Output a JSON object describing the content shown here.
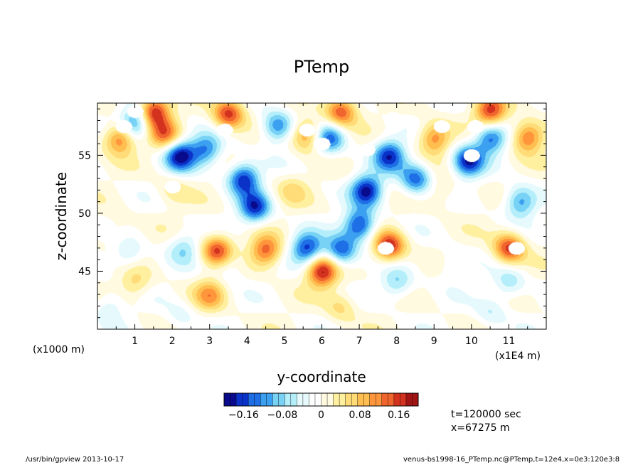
{
  "chart_data": {
    "type": "heatmap",
    "title": "PTemp",
    "xlabel": "y-coordinate",
    "ylabel": "z-coordinate",
    "x_unit_left": "(x1000 m)",
    "x_unit_right": "(x1E4 m)",
    "xlim": [
      0,
      12
    ],
    "ylim": [
      40,
      59.5
    ],
    "x_ticks": [
      "1",
      "2",
      "3",
      "4",
      "5",
      "6",
      "7",
      "8",
      "9",
      "10",
      "11"
    ],
    "x_tick_values": [
      1,
      2,
      3,
      4,
      5,
      6,
      7,
      8,
      9,
      10,
      11
    ],
    "y_ticks": [
      "45",
      "50",
      "55"
    ],
    "y_tick_values": [
      45,
      50,
      55
    ],
    "colorbar": {
      "ticks": [
        "−0.16",
        "−0.08",
        "0",
        "0.08",
        "0.16"
      ],
      "tick_values": [
        -0.16,
        -0.08,
        0,
        0.08,
        0.16
      ],
      "range": [
        -0.2,
        0.2
      ],
      "colors": [
        "#0a0a8c",
        "#0a32c8",
        "#1e6ee6",
        "#3ca0f0",
        "#78d2f5",
        "#b4eefa",
        "#e6fafd",
        "#ffffff",
        "#fffae0",
        "#fff0a0",
        "#ffdc78",
        "#ffbe50",
        "#ff963c",
        "#f0642d",
        "#d2321e",
        "#a01414"
      ]
    },
    "features": [
      {
        "y": 0.6,
        "z": 56.5,
        "v": 0.14
      },
      {
        "y": 1.5,
        "z": 58.8,
        "v": 0.18
      },
      {
        "y": 3.5,
        "z": 58.6,
        "v": 0.16
      },
      {
        "y": 6.5,
        "z": 58.8,
        "v": 0.15
      },
      {
        "y": 10.5,
        "z": 58.8,
        "v": 0.16
      },
      {
        "y": 1.8,
        "z": 56.8,
        "v": 0.12
      },
      {
        "y": 5.6,
        "z": 56.8,
        "v": 0.12
      },
      {
        "y": 9.0,
        "z": 56.5,
        "v": 0.12
      },
      {
        "y": 11.5,
        "z": 56.6,
        "v": 0.14
      },
      {
        "y": 2.0,
        "z": 52.0,
        "v": 0.04
      },
      {
        "y": 5.2,
        "z": 52.0,
        "v": 0.05
      },
      {
        "y": 9.2,
        "z": 52.0,
        "v": 0.04
      },
      {
        "y": 0.5,
        "z": 48.5,
        "v": 0.03
      },
      {
        "y": 1.0,
        "z": 57.8,
        "v": -0.14
      },
      {
        "y": 2.2,
        "z": 55.0,
        "v": -0.18
      },
      {
        "y": 2.9,
        "z": 55.5,
        "v": -0.12
      },
      {
        "y": 3.9,
        "z": 53.0,
        "v": -0.17
      },
      {
        "y": 4.2,
        "z": 50.5,
        "v": -0.16
      },
      {
        "y": 4.8,
        "z": 57.5,
        "v": -0.13
      },
      {
        "y": 6.2,
        "z": 56.5,
        "v": -0.14
      },
      {
        "y": 7.2,
        "z": 52.0,
        "v": -0.18
      },
      {
        "y": 7.0,
        "z": 49.0,
        "v": -0.17
      },
      {
        "y": 7.8,
        "z": 55.0,
        "v": -0.16
      },
      {
        "y": 8.5,
        "z": 53.0,
        "v": -0.14
      },
      {
        "y": 9.9,
        "z": 54.5,
        "v": -0.17
      },
      {
        "y": 10.5,
        "z": 56.5,
        "v": -0.14
      },
      {
        "y": 11.3,
        "z": 51.0,
        "v": -0.12
      },
      {
        "y": 5.6,
        "z": 47.0,
        "v": -0.16
      },
      {
        "y": 6.5,
        "z": 46.8,
        "v": -0.15
      },
      {
        "y": 2.3,
        "z": 47.0,
        "v": -0.07
      },
      {
        "y": 0.8,
        "z": 46.5,
        "v": -0.06
      },
      {
        "y": 3.5,
        "z": 45.5,
        "v": -0.05
      },
      {
        "y": 8.0,
        "z": 44.0,
        "v": -0.08
      },
      {
        "y": 11.0,
        "z": 44.0,
        "v": -0.07
      },
      {
        "y": 3.2,
        "z": 46.8,
        "v": 0.16
      },
      {
        "y": 4.5,
        "z": 46.8,
        "v": 0.14
      },
      {
        "y": 6.0,
        "z": 45.0,
        "v": 0.18
      },
      {
        "y": 7.8,
        "z": 47.2,
        "v": 0.17
      },
      {
        "y": 11.0,
        "z": 47.0,
        "v": 0.16
      },
      {
        "y": 3.0,
        "z": 43.0,
        "v": 0.1
      },
      {
        "y": 1.0,
        "z": 44.0,
        "v": 0.06
      },
      {
        "y": 6.5,
        "z": 42.0,
        "v": 0.06
      },
      {
        "y": 9.5,
        "z": 45.5,
        "v": -0.04
      },
      {
        "y": 0.3,
        "z": 42.0,
        "v": -0.05
      },
      {
        "y": 2.2,
        "z": 41.0,
        "v": -0.04
      },
      {
        "y": 10.5,
        "z": 41.5,
        "v": -0.05
      }
    ],
    "saturated_regions": [
      {
        "y": 1.0,
        "z": 58.8
      },
      {
        "y": 0.7,
        "z": 57.5
      },
      {
        "y": 3.4,
        "z": 57.2
      },
      {
        "y": 5.6,
        "z": 57.2
      },
      {
        "y": 6.0,
        "z": 56.0
      },
      {
        "y": 7.2,
        "z": 55.5
      },
      {
        "y": 7.9,
        "z": 58.2
      },
      {
        "y": 9.2,
        "z": 57.5
      },
      {
        "y": 10.1,
        "z": 57.5
      },
      {
        "y": 10.0,
        "z": 55.0
      },
      {
        "y": 2.0,
        "z": 52.3
      },
      {
        "y": 7.7,
        "z": 47.0
      },
      {
        "y": 11.2,
        "z": 47.0
      }
    ]
  },
  "info": {
    "time": "t=120000 sec",
    "position": "x=67275 m"
  },
  "footer": {
    "left": "/usr/bin/gpview  2013-10-17",
    "right": "venus-bs1998-16_PTemp.nc@PTemp,t=12e4,x=0e3:120e3:8"
  }
}
